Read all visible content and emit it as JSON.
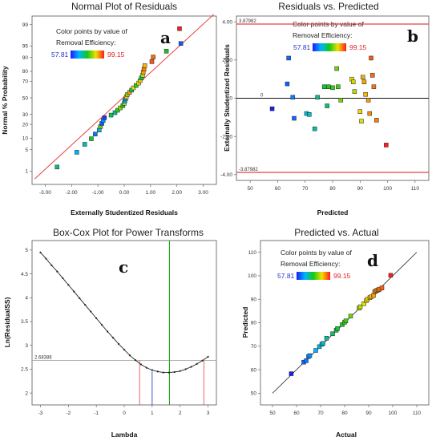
{
  "colorbar": {
    "min_label": "57.81",
    "max_label": "99.15",
    "min": 57.81,
    "max": 99.15
  },
  "colors": {
    "fit_line": "#e84040",
    "ci_line": "#e84040",
    "optimum_line": "#1fa81f",
    "current_line": "#2244cc",
    "residual_line": "#999999"
  },
  "chart_data": [
    {
      "id": "a",
      "type": "scatter",
      "title": "Normal Plot of Residuals",
      "letter": "a",
      "xlabel": "Externally Studentized Residuals",
      "ylabel": "Normal % Probability",
      "legend_title": "Color points by value of",
      "legend_var": "Removal Efficiency:",
      "xlim": [
        -3.5,
        3.5
      ],
      "xticks": [
        "-3.00",
        "-2.00",
        "-1.00",
        "0.00",
        "1.00",
        "2.00",
        "3.00"
      ],
      "ytick_values": [
        1,
        5,
        10,
        20,
        30,
        50,
        70,
        80,
        90,
        95,
        99
      ],
      "ytick_labels": [
        "1",
        "5",
        "10",
        "20",
        "30",
        "50",
        "70",
        "80",
        "90",
        "95",
        "99"
      ],
      "line": [
        [
          -3.4,
          0.5
        ],
        [
          3.4,
          99.6
        ]
      ],
      "points": [
        [
          -2.55,
          1.4,
          74.0
        ],
        [
          -1.8,
          4.2,
          68.0
        ],
        [
          -1.5,
          7.0,
          72.0
        ],
        [
          -1.25,
          9.7,
          78.0
        ],
        [
          -1.1,
          12.5,
          64.0
        ],
        [
          -0.95,
          15.3,
          70.0
        ],
        [
          -0.9,
          18.1,
          82.0
        ],
        [
          -0.85,
          20.8,
          62.0
        ],
        [
          -0.8,
          23.6,
          66.0
        ],
        [
          -0.75,
          26.4,
          60.0
        ],
        [
          -0.5,
          29.2,
          76.0
        ],
        [
          -0.35,
          31.9,
          72.0
        ],
        [
          -0.25,
          34.7,
          80.0
        ],
        [
          -0.15,
          37.5,
          84.0
        ],
        [
          -0.05,
          40.3,
          78.0
        ],
        [
          0.0,
          43.1,
          86.0
        ],
        [
          0.02,
          45.8,
          70.0
        ],
        [
          0.05,
          48.6,
          66.0
        ],
        [
          0.08,
          51.4,
          90.0
        ],
        [
          0.12,
          54.2,
          84.0
        ],
        [
          0.2,
          56.9,
          92.0
        ],
        [
          0.28,
          59.7,
          74.0
        ],
        [
          0.35,
          62.5,
          88.0
        ],
        [
          0.45,
          65.3,
          80.0
        ],
        [
          0.55,
          68.1,
          88.0
        ],
        [
          0.6,
          70.8,
          90.0
        ],
        [
          0.65,
          73.6,
          76.0
        ],
        [
          0.7,
          76.4,
          86.0
        ],
        [
          0.72,
          79.2,
          92.0
        ],
        [
          0.75,
          81.9,
          94.0
        ],
        [
          0.78,
          84.7,
          91.0
        ],
        [
          1.05,
          87.5,
          96.0
        ],
        [
          1.1,
          90.3,
          95.0
        ],
        [
          1.6,
          93.1,
          78.0
        ],
        [
          2.15,
          95.8,
          62.0
        ],
        [
          2.1,
          98.6,
          99.0
        ]
      ]
    },
    {
      "id": "b",
      "type": "scatter",
      "title": "Residuals vs. Predicted",
      "letter": "b",
      "xlabel": "Predicted",
      "ylabel": "Externally Studentized Residuals",
      "legend_title": "Color points by value of",
      "legend_var": "Removal Efficiency:",
      "xlim": [
        45,
        115
      ],
      "ylim": [
        -4.3,
        4.3
      ],
      "xticks": [
        50,
        60,
        70,
        80,
        90,
        100,
        110
      ],
      "yticks": [
        "-4.00",
        "-2.00",
        "0",
        "2.00",
        "4.00"
      ],
      "ytick_values": [
        -4,
        -2,
        0,
        2,
        4
      ],
      "limit_upper": 3.87982,
      "limit_lower": -3.87982,
      "limit_upper_label": "3.87982",
      "limit_lower_label": "-3.87982",
      "zero_label": "0",
      "points": [
        [
          58,
          -0.55,
          57.81
        ],
        [
          63.5,
          0.75,
          62.5
        ],
        [
          64,
          2.1,
          63.0
        ],
        [
          65.5,
          0.05,
          64.8
        ],
        [
          66,
          -1.05,
          63.0
        ],
        [
          70.5,
          -0.8,
          70.0
        ],
        [
          71.5,
          -0.85,
          71.0
        ],
        [
          73.5,
          -1.6,
          72.0
        ],
        [
          74.5,
          0.05,
          73.5
        ],
        [
          77,
          0.6,
          77.0
        ],
        [
          78,
          -0.4,
          75.0
        ],
        [
          78.5,
          0.6,
          79.0
        ],
        [
          80,
          0.55,
          80.0
        ],
        [
          81.5,
          1.55,
          83.0
        ],
        [
          82,
          0.6,
          80.5
        ],
        [
          83,
          -0.1,
          83.0
        ],
        [
          87,
          1.0,
          88.5
        ],
        [
          87.5,
          0.85,
          87.0
        ],
        [
          88,
          0.35,
          86.0
        ],
        [
          90,
          -0.7,
          89.5
        ],
        [
          90.5,
          -1.2,
          88.0
        ],
        [
          91,
          1.1,
          91.5
        ],
        [
          91.5,
          0.85,
          92.0
        ],
        [
          92,
          0.2,
          91.0
        ],
        [
          93,
          -0.1,
          92.5
        ],
        [
          93.5,
          -0.8,
          93.0
        ],
        [
          94,
          2.1,
          96.0
        ],
        [
          94.5,
          1.2,
          95.0
        ],
        [
          95,
          0.6,
          94.5
        ],
        [
          96,
          -1.15,
          94.0
        ],
        [
          99.5,
          -2.45,
          99.15
        ]
      ]
    },
    {
      "id": "c",
      "type": "line",
      "title": "Box-Cox Plot for Power Transforms",
      "letter": "c",
      "xlabel": "Lambda",
      "ylabel": "Ln(ResidualSS)",
      "xlim": [
        -3.3,
        3.3
      ],
      "ylim": [
        1.75,
        5.2
      ],
      "xticks": [
        -3,
        -2,
        -1,
        0,
        1,
        2,
        3
      ],
      "yticks": [
        2,
        2.5,
        3,
        3.5,
        4,
        4.5,
        5
      ],
      "ytick_labels": [
        "2",
        "2.5",
        "3",
        "3.5",
        "4",
        "4.5",
        "5"
      ],
      "threshold": 2.68386,
      "threshold_label": "2.68386",
      "ci_low": 0.55,
      "ci_high": 2.85,
      "best_lambda": 1.62,
      "current_lambda": 1,
      "min_value": 2.43,
      "curve_lambda": [
        -3,
        -2.8,
        -2.6,
        -2.4,
        -2.2,
        -2,
        -1.8,
        -1.6,
        -1.4,
        -1.2,
        -1,
        -0.8,
        -0.6,
        -0.4,
        -0.2,
        0,
        0.2,
        0.4,
        0.6,
        0.8,
        1,
        1.2,
        1.4,
        1.6,
        1.8,
        2,
        2.2,
        2.4,
        2.6,
        2.8,
        3
      ],
      "curve_value": [
        4.95,
        4.82,
        4.68,
        4.55,
        4.41,
        4.27,
        4.13,
        3.99,
        3.85,
        3.71,
        3.57,
        3.43,
        3.29,
        3.16,
        3.03,
        2.91,
        2.79,
        2.69,
        2.6,
        2.53,
        2.48,
        2.45,
        2.43,
        2.43,
        2.44,
        2.46,
        2.5,
        2.55,
        2.61,
        2.68,
        2.76
      ]
    },
    {
      "id": "d",
      "type": "scatter",
      "title": "Predicted vs. Actual",
      "letter": "d",
      "xlabel": "Actual",
      "ylabel": "Predicted",
      "legend_title": "Color points by value of",
      "legend_var": "Removal Efficiency:",
      "xlim": [
        45,
        115
      ],
      "ylim": [
        45,
        115
      ],
      "xticks": [
        50,
        60,
        70,
        80,
        90,
        100,
        110
      ],
      "yticks": [
        50,
        60,
        70,
        80,
        90,
        100,
        110
      ],
      "line": [
        [
          50,
          50
        ],
        [
          110,
          110
        ]
      ],
      "points": [
        [
          57.81,
          58.3
        ],
        [
          63,
          63.2
        ],
        [
          64,
          63.8
        ],
        [
          65,
          65.6
        ],
        [
          65.5,
          66.0
        ],
        [
          68,
          68.2
        ],
        [
          69.5,
          69.8
        ],
        [
          70.5,
          70.8
        ],
        [
          71,
          71.2
        ],
        [
          72.5,
          73.4
        ],
        [
          75,
          75.3
        ],
        [
          76.5,
          76.8
        ],
        [
          77,
          77.5
        ],
        [
          79,
          79.2
        ],
        [
          80,
          80.2
        ],
        [
          80.5,
          80.8
        ],
        [
          82.5,
          82.8
        ],
        [
          86,
          86.2
        ],
        [
          86.5,
          86.8
        ],
        [
          88,
          88.1
        ],
        [
          89,
          89.4
        ],
        [
          89.5,
          90.0
        ],
        [
          90.5,
          90.7
        ],
        [
          91,
          91.0
        ],
        [
          92,
          91.6
        ],
        [
          92.5,
          93.2
        ],
        [
          93,
          93.5
        ],
        [
          93.5,
          93.8
        ],
        [
          94,
          94.0
        ],
        [
          94.5,
          94.3
        ],
        [
          95.5,
          94.8
        ],
        [
          99.15,
          100.2
        ]
      ]
    }
  ]
}
